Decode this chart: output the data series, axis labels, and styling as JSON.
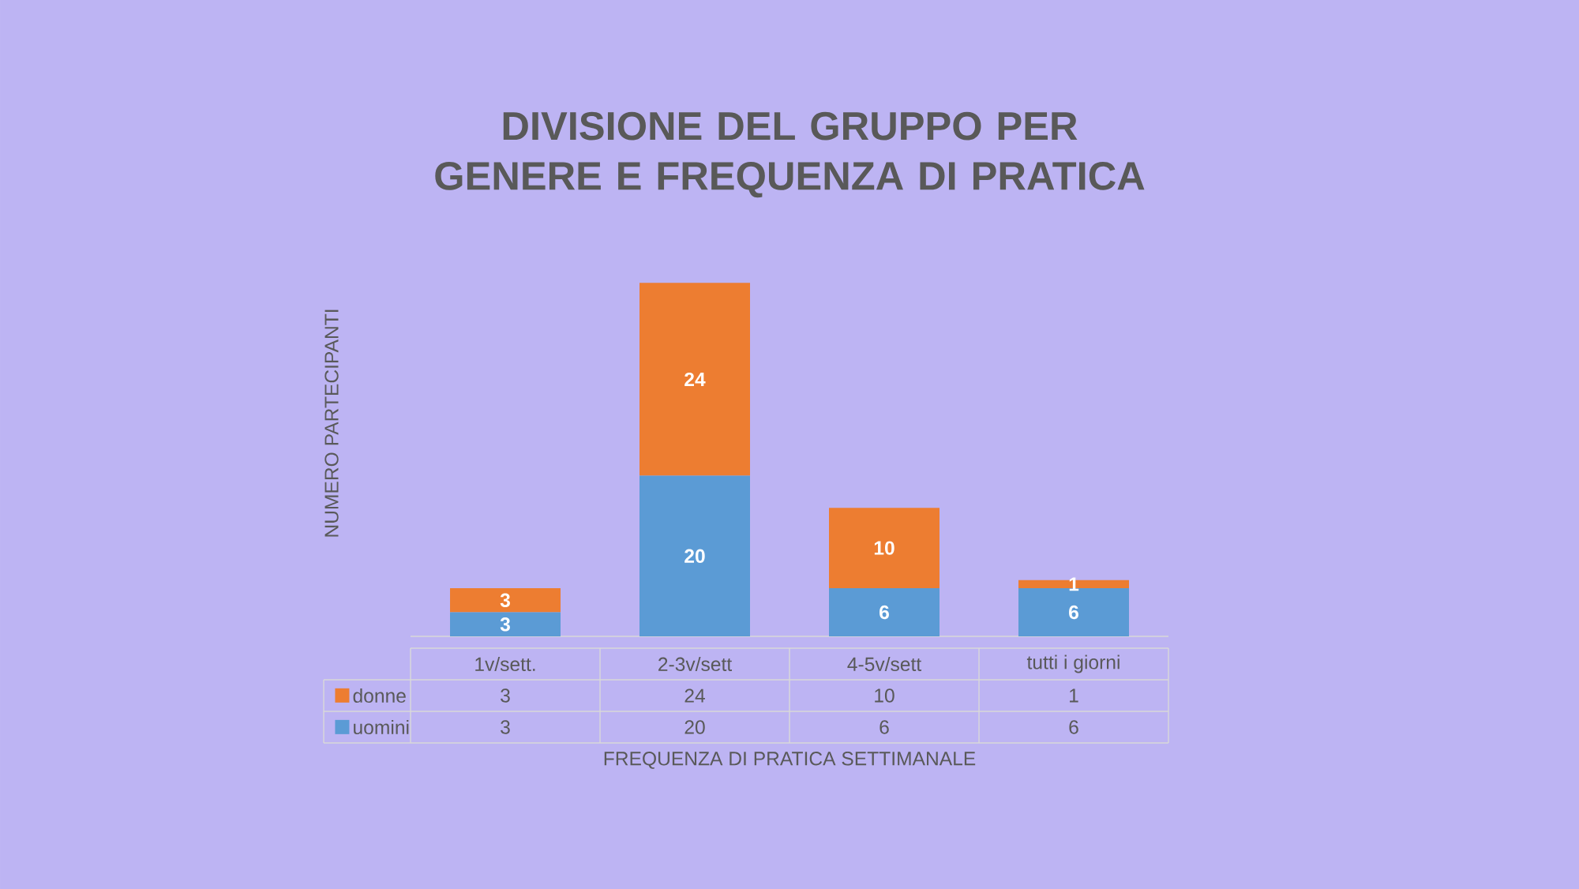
{
  "chart_data": {
    "type": "bar",
    "title": "DIVISIONE DEL GRUPPO PER GENERE E FREQUENZA DI PRATICA",
    "xlabel": "FREQUENZA DI PRATICA SETTIMANALE",
    "ylabel": "NUMERO PARTECIPANTI",
    "categories": [
      "1v/sett.",
      "2-3v/sett",
      "4-5v/sett",
      "tutti i giorni"
    ],
    "series": [
      {
        "name": "uomini",
        "color": "#5b9bd5",
        "values": [
          3,
          20,
          6,
          6
        ],
        "value_labels": [
          "3",
          "20",
          "6",
          "6"
        ]
      },
      {
        "name": "donne",
        "color": "#ed7d31",
        "values": [
          3,
          24,
          10,
          1
        ],
        "value_labels": [
          "3",
          "24",
          "10",
          "1"
        ]
      }
    ],
    "stacked": true,
    "data_labels": true,
    "legend": "bottom"
  }
}
